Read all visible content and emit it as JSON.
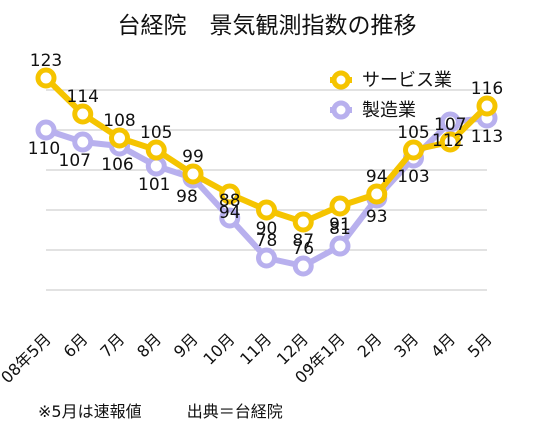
{
  "chart_data": {
    "type": "line",
    "title": "台経院　景気観測指数の推移",
    "xlabel": "",
    "ylabel": "",
    "categories": [
      "08年5月",
      "6月",
      "7月",
      "8月",
      "9月",
      "10月",
      "11月",
      "12月",
      "09年1月",
      "2月",
      "3月",
      "4月",
      "5月"
    ],
    "series": [
      {
        "name": "サービス業",
        "color": "#f5c400",
        "values": [
          123,
          114,
          108,
          105,
          99,
          94,
          90,
          87,
          91,
          94,
          105,
          107,
          116
        ]
      },
      {
        "name": "製造業",
        "color": "#b8b0ee",
        "values": [
          110,
          107,
          106,
          101,
          98,
          88,
          78,
          76,
          81,
          93,
          103,
          112,
          113
        ]
      }
    ],
    "ylim": [
      60,
      130
    ],
    "grid": true,
    "legend": "top-right"
  },
  "footnote": {
    "note": "※5月は速報値",
    "source": "出典＝台経院"
  }
}
